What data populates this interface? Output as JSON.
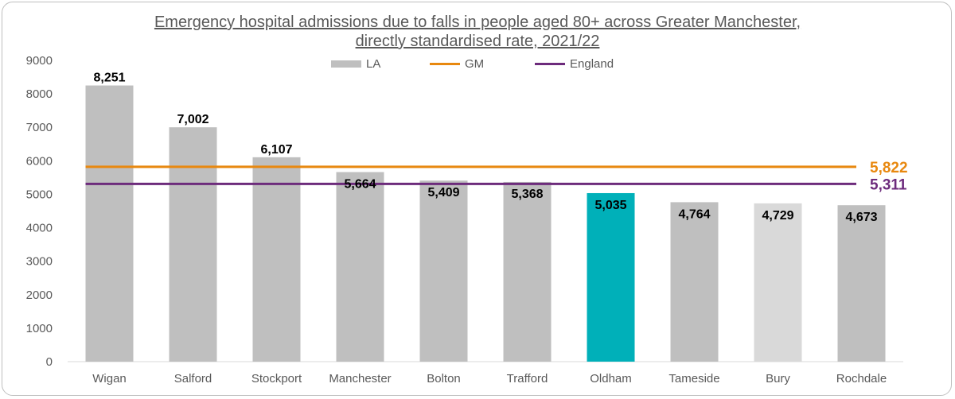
{
  "chart_data": {
    "type": "bar",
    "title_line1": "Emergency hospital admissions due to falls in people aged 80+ across Greater Manchester,",
    "title_line2": "directly standardised rate, 2021/22",
    "categories": [
      "Wigan",
      "Salford",
      "Stockport",
      "Manchester",
      "Bolton",
      "Trafford",
      "Oldham",
      "Tameside",
      "Bury",
      "Rochdale"
    ],
    "series": [
      {
        "name": "LA",
        "values": [
          8251,
          7002,
          6107,
          5664,
          5409,
          5368,
          5035,
          4764,
          4729,
          4673
        ],
        "value_labels": [
          "8,251",
          "7,002",
          "6,107",
          "5,664",
          "5,409",
          "5,368",
          "5,035",
          "4,764",
          "4,729",
          "4,673"
        ],
        "colors": [
          "#bfbfbf",
          "#bfbfbf",
          "#bfbfbf",
          "#bfbfbf",
          "#bfbfbf",
          "#bfbfbf",
          "#00b0b9",
          "#bfbfbf",
          "#d9d9d9",
          "#bfbfbf"
        ]
      }
    ],
    "reference_lines": [
      {
        "name": "GM",
        "value": 5822,
        "label": "5,822",
        "color": "#e8880f"
      },
      {
        "name": "England",
        "value": 5311,
        "label": "5,311",
        "color": "#6d2b7c"
      }
    ],
    "legend": {
      "position": "top",
      "entries": [
        "LA",
        "GM",
        "England"
      ]
    },
    "y_ticks": [
      "0",
      "1000",
      "2000",
      "3000",
      "4000",
      "5000",
      "6000",
      "7000",
      "8000",
      "9000"
    ],
    "ylim": [
      0,
      9000
    ],
    "grid": false,
    "xlabel": "",
    "ylabel": ""
  }
}
